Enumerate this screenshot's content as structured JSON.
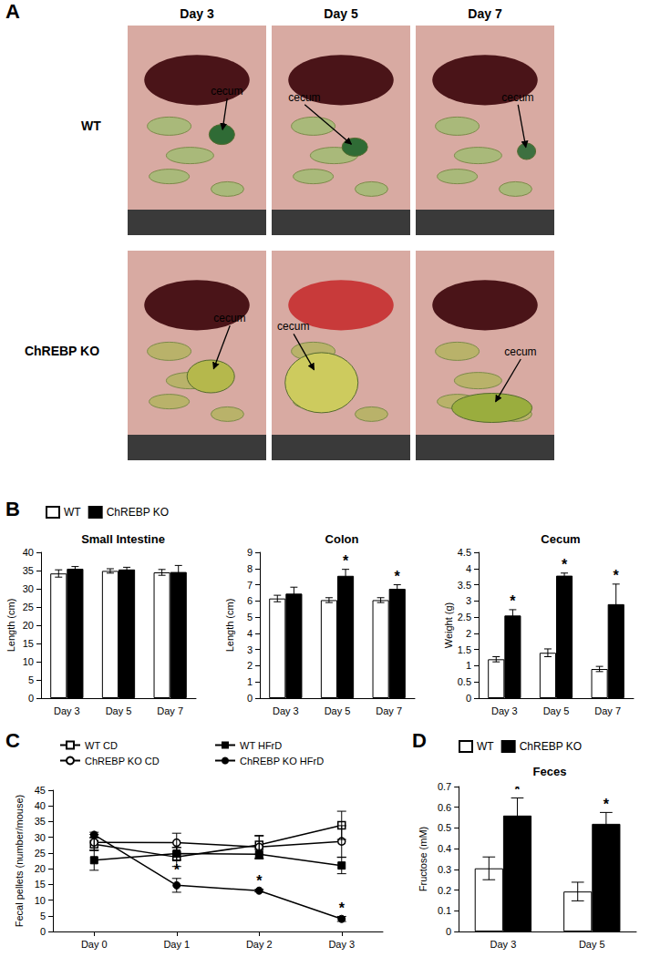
{
  "panel_labels": [
    "A",
    "B",
    "C",
    "D"
  ],
  "photo_panel": {
    "columns": [
      "Day 3",
      "Day 5",
      "Day 7"
    ],
    "rows": [
      "WT",
      "ChREBP KO"
    ],
    "arrow_label": "cecum"
  },
  "chart_data": [
    {
      "type": "bar",
      "title": "Small Intestine",
      "ylabel": "Length (cm)",
      "categories": [
        "Day 3",
        "Day 5",
        "Day 7"
      ],
      "series": [
        {
          "name": "WT",
          "color": "#ffffff",
          "values": [
            34.2,
            34.9,
            34.5
          ],
          "errors": [
            1.0,
            0.6,
            0.8
          ],
          "significance": [
            null,
            null,
            null
          ]
        },
        {
          "name": "ChREBP KO",
          "color": "#000000",
          "values": [
            35.5,
            35.3,
            34.6
          ],
          "errors": [
            0.6,
            0.6,
            1.8
          ],
          "significance": [
            null,
            null,
            null
          ]
        }
      ],
      "ylim": [
        0,
        40
      ],
      "yticks": [
        0,
        5,
        10,
        15,
        20,
        25,
        30,
        35,
        40
      ],
      "grid": false,
      "legend": "top"
    },
    {
      "type": "bar",
      "title": "Colon",
      "ylabel": "Length (cm)",
      "categories": [
        "Day 3",
        "Day 5",
        "Day 7"
      ],
      "series": [
        {
          "name": "WT",
          "color": "#ffffff",
          "values": [
            6.15,
            6.05,
            6.05
          ],
          "errors": [
            0.2,
            0.15,
            0.15
          ],
          "significance": [
            null,
            null,
            null
          ]
        },
        {
          "name": "ChREBP KO",
          "color": "#000000",
          "values": [
            6.45,
            7.55,
            6.75
          ],
          "errors": [
            0.4,
            0.4,
            0.25
          ],
          "significance": [
            null,
            "*",
            "*"
          ]
        }
      ],
      "ylim": [
        0,
        9
      ],
      "yticks": [
        0,
        1,
        2,
        3,
        4,
        5,
        6,
        7,
        8,
        9
      ],
      "grid": false,
      "legend": "top"
    },
    {
      "type": "bar",
      "title": "Cecum",
      "ylabel": "Weight (g)",
      "categories": [
        "Day 3",
        "Day 5",
        "Day 7"
      ],
      "series": [
        {
          "name": "WT",
          "color": "#ffffff",
          "values": [
            1.2,
            1.4,
            0.9
          ],
          "errors": [
            0.08,
            0.12,
            0.08
          ],
          "significance": [
            null,
            null,
            null
          ]
        },
        {
          "name": "ChREBP KO",
          "color": "#000000",
          "values": [
            2.55,
            3.78,
            2.9
          ],
          "errors": [
            0.18,
            0.08,
            0.62
          ],
          "significance": [
            "*",
            "*",
            "*"
          ]
        }
      ],
      "ylim": [
        0,
        4.5
      ],
      "yticks": [
        0,
        0.5,
        1,
        1.5,
        2,
        2.5,
        3,
        3.5,
        4,
        4.5
      ],
      "grid": false,
      "legend": "top"
    },
    {
      "type": "line",
      "ylabel": "Fecal pellets (number/mouse)",
      "categories": [
        "Day 0",
        "Day 1",
        "Day 2",
        "Day 3"
      ],
      "series": [
        {
          "name": "WT CD",
          "color": "#000000",
          "marker": "square-open",
          "values": [
            27.8,
            23.7,
            27.6,
            33.8
          ],
          "errors": [
            2.0,
            3.0,
            3.0,
            4.5
          ],
          "significance": [
            null,
            null,
            null,
            null
          ]
        },
        {
          "name": "WT HFrD",
          "color": "#000000",
          "marker": "square",
          "values": [
            22.7,
            24.8,
            24.6,
            21.0
          ],
          "errors": [
            3.2,
            2.0,
            1.5,
            2.6
          ],
          "significance": [
            null,
            null,
            null,
            null
          ]
        },
        {
          "name": "ChREBP KO CD",
          "color": "#000000",
          "marker": "circle-open",
          "values": [
            28.4,
            28.3,
            26.9,
            28.7
          ],
          "errors": [
            2.5,
            3.0,
            3.5,
            5.0
          ],
          "significance": [
            null,
            null,
            null,
            null
          ]
        },
        {
          "name": "ChREBP KO HFrD",
          "color": "#000000",
          "marker": "circle",
          "values": [
            30.8,
            14.7,
            13.0,
            4.0
          ],
          "errors": [
            0.8,
            2.2,
            0.4,
            0.8
          ],
          "significance": [
            null,
            "*",
            "*",
            "*"
          ]
        }
      ],
      "ylim": [
        0,
        45
      ],
      "yticks": [
        0,
        5,
        10,
        15,
        20,
        25,
        30,
        35,
        40,
        45
      ],
      "grid": false,
      "legend": "top"
    },
    {
      "type": "bar",
      "title": "Feces",
      "ylabel": "Fructose (mM)",
      "categories": [
        "Day 3",
        "Day 5"
      ],
      "series": [
        {
          "name": "WT",
          "color": "#ffffff",
          "values": [
            0.305,
            0.193
          ],
          "errors": [
            0.055,
            0.045
          ],
          "significance": [
            null,
            null
          ]
        },
        {
          "name": "ChREBP KO",
          "color": "#000000",
          "values": [
            0.56,
            0.52
          ],
          "errors": [
            0.085,
            0.055
          ],
          "significance": [
            "*",
            "*"
          ]
        }
      ],
      "ylim": [
        0,
        0.7
      ],
      "yticks": [
        0,
        0.1,
        0.2,
        0.3,
        0.4,
        0.5,
        0.6,
        0.7
      ],
      "grid": false,
      "legend": "top"
    }
  ]
}
